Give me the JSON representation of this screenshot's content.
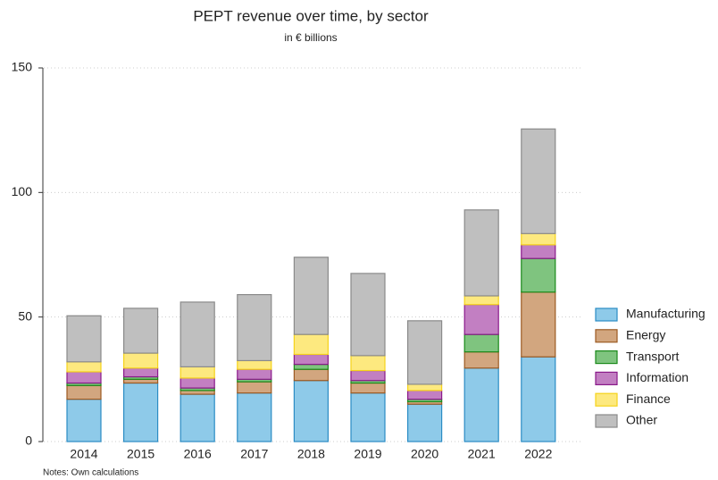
{
  "chart_data": {
    "type": "stacked_bar",
    "title": "PEPT revenue over time, by sector",
    "subtitle": "in € billions",
    "note": "Notes: Own calculations",
    "categories": [
      "2014",
      "2015",
      "2016",
      "2017",
      "2018",
      "2019",
      "2020",
      "2021",
      "2022"
    ],
    "series": [
      {
        "name": "Manufacturing",
        "color": "#8ecae9",
        "edgecolor": "#2b8cc4",
        "values": [
          17,
          23.5,
          19,
          19.5,
          24.5,
          19.5,
          15,
          29.5,
          34
        ]
      },
      {
        "name": "Energy",
        "color": "#d2a67f",
        "edgecolor": "#9c5a22",
        "values": [
          5.5,
          1.5,
          1.5,
          4.5,
          4.5,
          4,
          1,
          6.5,
          26
        ]
      },
      {
        "name": "Transport",
        "color": "#7fc47f",
        "edgecolor": "#1a8a1a",
        "values": [
          1,
          1,
          1,
          1,
          2,
          1,
          1,
          7,
          13.5
        ]
      },
      {
        "name": "Information",
        "color": "#c27fc2",
        "edgecolor": "#8a1a8a",
        "values": [
          4.5,
          3.5,
          4,
          4,
          4,
          4,
          3.5,
          12,
          5.5
        ]
      },
      {
        "name": "Finance",
        "color": "#fde97f",
        "edgecolor": "#f5d31a",
        "values": [
          4,
          6,
          4.5,
          3.5,
          8,
          6,
          2.5,
          3.5,
          4.5
        ]
      },
      {
        "name": "Other",
        "color": "#bfbfbf",
        "edgecolor": "#8a8a8a",
        "values": [
          18.5,
          18,
          26,
          26.5,
          31,
          33,
          25.5,
          34.5,
          42
        ]
      }
    ],
    "ylim": [
      0,
      150
    ],
    "yticks": [
      0,
      50,
      100,
      150
    ],
    "grid": true,
    "legend": "right"
  }
}
